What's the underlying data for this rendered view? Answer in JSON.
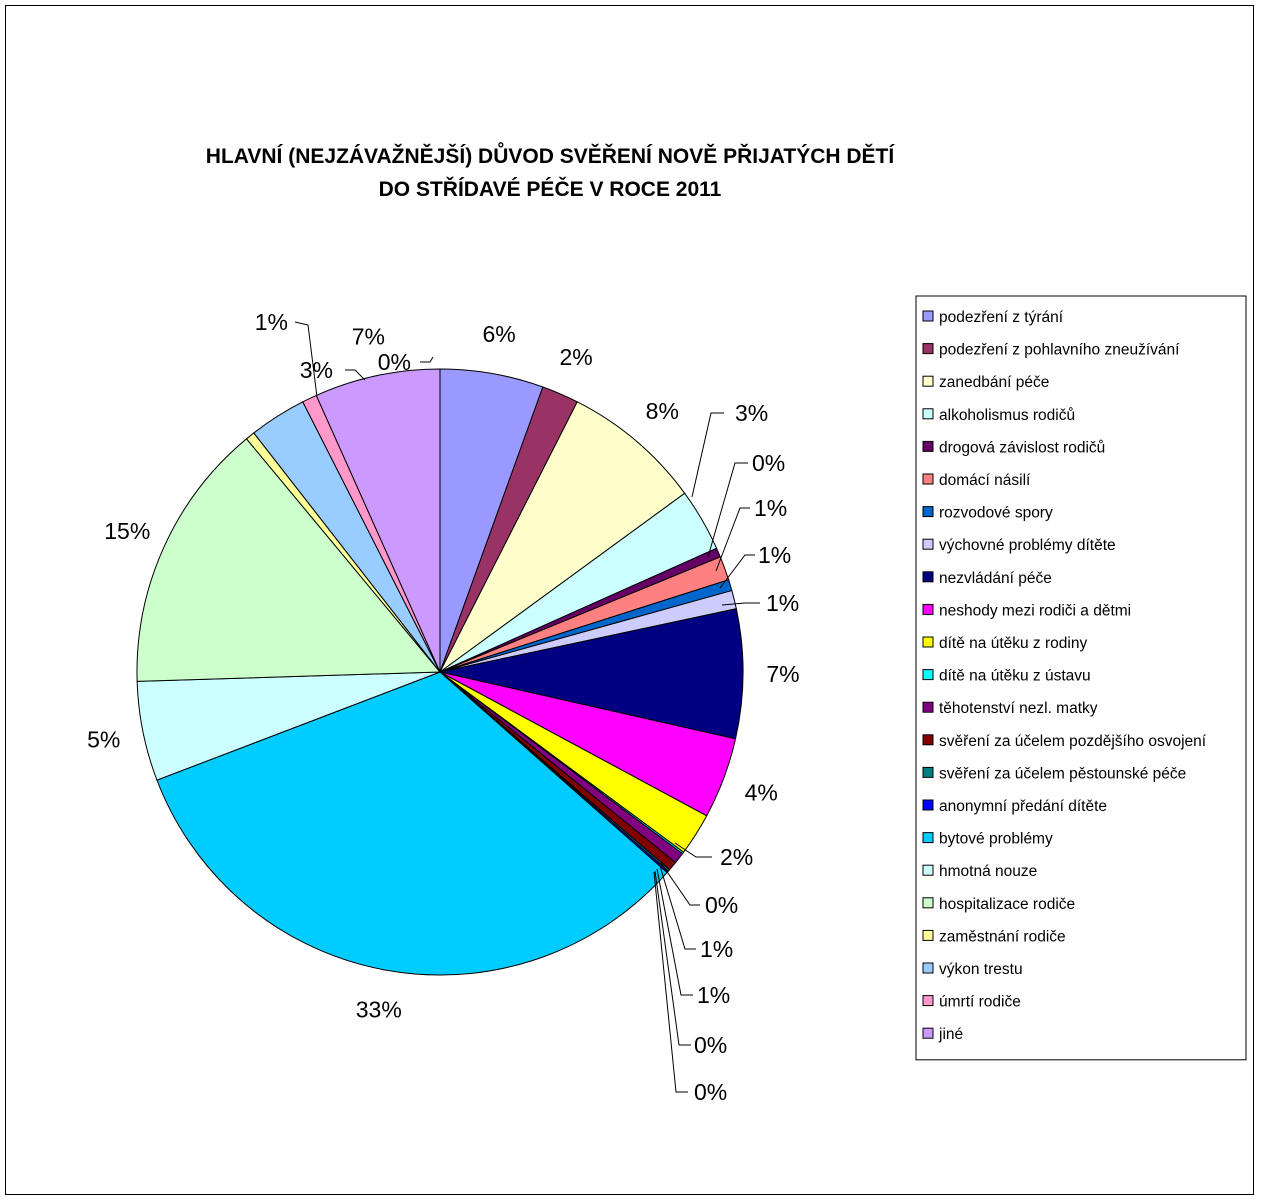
{
  "chart_data": {
    "type": "pie",
    "title_lines": [
      "HLAVNÍ (NEJZÁVAŽNĚJŠÍ) DŮVOD SVĚŘENÍ NOVĚ PŘIJATÝCH DĚTÍ",
      "DO STŘÍDAVÉ PÉČE V ROCE 2011"
    ],
    "legend_placement": "right",
    "slices": [
      {
        "label": "podezření z týrání",
        "value": 5.6,
        "pct_label": "6%",
        "color": "#9999ff"
      },
      {
        "label": "podezření z pohlavního zneužívání",
        "value": 2.0,
        "pct_label": "2%",
        "color": "#993366"
      },
      {
        "label": "zanedbání péče",
        "value": 7.6,
        "pct_label": "8%",
        "color": "#ffffcc"
      },
      {
        "label": "alkoholismus rodičů",
        "value": 3.4,
        "pct_label": "3%",
        "color": "#ccffff"
      },
      {
        "label": "drogová závislost rodičů",
        "value": 0.5,
        "pct_label": "0%",
        "color": "#660066"
      },
      {
        "label": "domácí násilí",
        "value": 1.3,
        "pct_label": "1%",
        "color": "#ff8080"
      },
      {
        "label": "rozvodové spory",
        "value": 0.6,
        "pct_label": "1%",
        "color": "#0066cc"
      },
      {
        "label": "výchovné problémy dítěte",
        "value": 1.0,
        "pct_label": "1%",
        "color": "#ccccff"
      },
      {
        "label": "nezvládání péče",
        "value": 7.0,
        "pct_label": "7%",
        "color": "#000080"
      },
      {
        "label": "neshody mezi rodiči a dětmi",
        "value": 4.4,
        "pct_label": "4%",
        "color": "#ff00ff"
      },
      {
        "label": "dítě na útěku z rodiny",
        "value": 2.3,
        "pct_label": "2%",
        "color": "#ffff00"
      },
      {
        "label": "dítě na útěku z ústavu",
        "value": 0.1,
        "pct_label": "0%",
        "color": "#00ffff"
      },
      {
        "label": "těhotenství nezl. matky",
        "value": 0.6,
        "pct_label": "1%",
        "color": "#800080"
      },
      {
        "label": "svěření za účelem pozdějšího osvojení",
        "value": 0.5,
        "pct_label": "1%",
        "color": "#800000"
      },
      {
        "label": "svěření za účelem pěstounské péče",
        "value": 0.1,
        "pct_label": "0%",
        "color": "#008080"
      },
      {
        "label": "anonymní předání dítěte",
        "value": 0.1,
        "pct_label": "0%",
        "color": "#0000ff"
      },
      {
        "label": "bytové problémy",
        "value": 33.2,
        "pct_label": "33%",
        "color": "#00ccff"
      },
      {
        "label": "hmotná nouze",
        "value": 5.4,
        "pct_label": "5%",
        "color": "#ccffff"
      },
      {
        "label": "hospitalizace rodiče",
        "value": 14.7,
        "pct_label": "15%",
        "color": "#ccffcc"
      },
      {
        "label": "zaměstnání rodiče",
        "value": 0.5,
        "pct_label": "0%",
        "color": "#ffff99"
      },
      {
        "label": "výkon trestu",
        "value": 3.1,
        "pct_label": "3%",
        "color": "#99ccff"
      },
      {
        "label": "úmrtí rodiče",
        "value": 0.8,
        "pct_label": "1%",
        "color": "#ff99cc"
      },
      {
        "label": "jiné",
        "value": 6.8,
        "pct_label": "7%",
        "color": "#cc99ff"
      }
    ]
  }
}
